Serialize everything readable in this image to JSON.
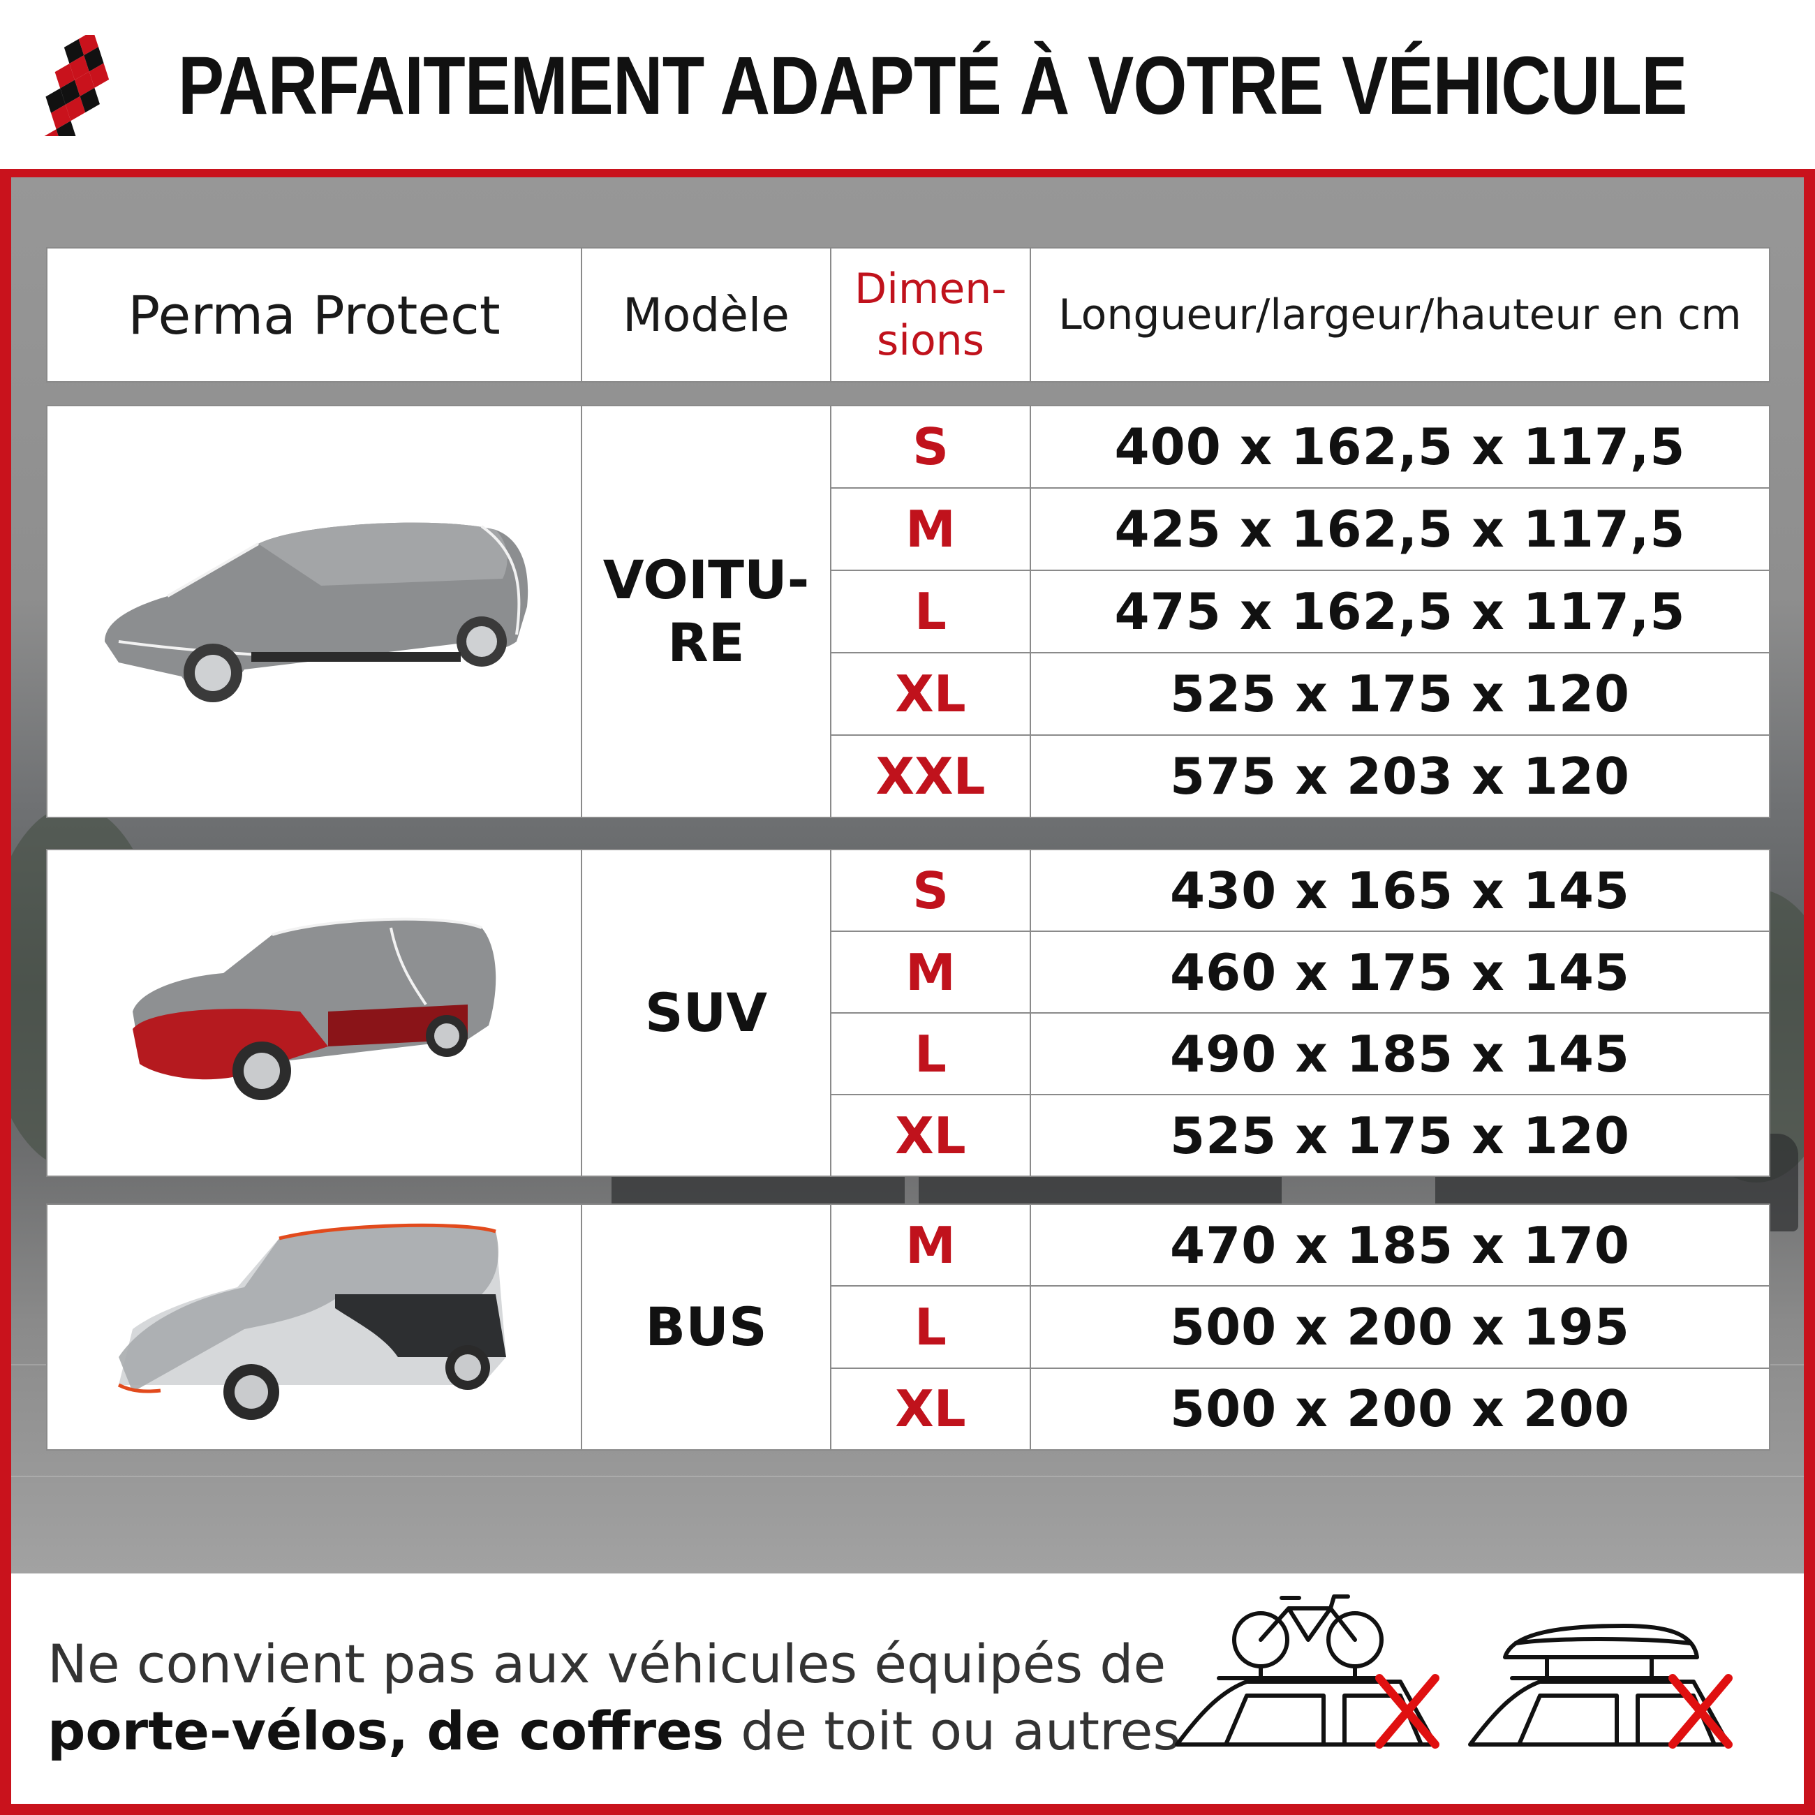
{
  "header": {
    "title": "PARFAITEMENT ADAPTÉ À VOTRE VÉHICULE",
    "logo_icon": "checkered-flag-icon"
  },
  "colors": {
    "accent": "#c9121c",
    "size_text": "#c0121c"
  },
  "table_header": {
    "product": "Perma Protect",
    "model": "Modèle",
    "dimensions_line1": "Dimen-",
    "dimensions_line2": "sions",
    "measure": "Longueur/largeur/hauteur en cm"
  },
  "sections": [
    {
      "model_line1": "VOITU-",
      "model_line2": "RE",
      "image": "car-hatchback-with-cover",
      "rows": [
        {
          "size": "S",
          "dims": "400 x 162,5 x 117,5"
        },
        {
          "size": "M",
          "dims": "425 x 162,5 x 117,5"
        },
        {
          "size": "L",
          "dims": "475 x 162,5 x 117,5"
        },
        {
          "size": "XL",
          "dims": "525 x 175 x 120"
        },
        {
          "size": "XXL",
          "dims": "575 x 203 x 120"
        }
      ]
    },
    {
      "model_line1": "SUV",
      "image": "suv-with-cover",
      "rows": [
        {
          "size": "S",
          "dims": "430 x 165 x 145"
        },
        {
          "size": "M",
          "dims": "460 x 175 x 145"
        },
        {
          "size": "L",
          "dims": "490 x 185 x 145"
        },
        {
          "size": "XL",
          "dims": "525 x 175 x 120"
        }
      ]
    },
    {
      "model_line1": "BUS",
      "image": "van-with-cover",
      "rows": [
        {
          "size": "M",
          "dims": "470 x 185 x 170"
        },
        {
          "size": "L",
          "dims": "500 x 200 x 195"
        },
        {
          "size": "XL",
          "dims": "500 x 200 x 200"
        }
      ]
    }
  ],
  "footer": {
    "note_part1": "Ne convient pas aux véhicules équipés de",
    "note_bold": "porte-vélos, de coffres",
    "note_part2": " de toit ou autres",
    "icons": [
      "bike-rack-crossed-icon",
      "roof-box-crossed-icon"
    ]
  }
}
